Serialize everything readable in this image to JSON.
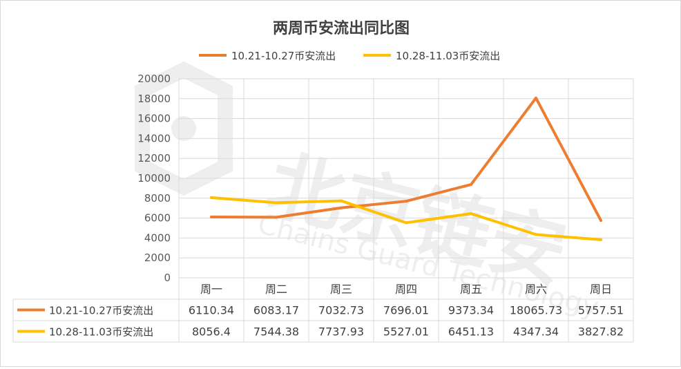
{
  "chart_data": {
    "type": "line",
    "title": "两周币安流出同比图",
    "categories": [
      "周一",
      "周二",
      "周三",
      "周四",
      "周五",
      "周六",
      "周日"
    ],
    "series": [
      {
        "name": "10.21-10.27币安流出",
        "color": "#ED7D31",
        "values": [
          6110.34,
          6083.17,
          7032.73,
          7696.01,
          9373.34,
          18065.73,
          5757.51
        ],
        "labels": [
          "6110.34",
          "6083.17",
          "7032.73",
          "7696.01",
          "9373.34",
          "18065.73",
          "5757.51"
        ]
      },
      {
        "name": "10.28-11.03币安流出",
        "color": "#FFC000",
        "values": [
          8056.4,
          7544.38,
          7737.93,
          5527.01,
          6451.13,
          4347.34,
          3827.82
        ],
        "labels": [
          "8056.4",
          "7544.38",
          "7737.93",
          "5527.01",
          "6451.13",
          "4347.34",
          "3827.82"
        ]
      }
    ],
    "yticks": [
      "0",
      "2000",
      "4000",
      "6000",
      "8000",
      "10000",
      "12000",
      "14000",
      "16000",
      "18000",
      "20000"
    ],
    "ylim": [
      0,
      20000
    ],
    "grid": true,
    "legend": "top",
    "data_table": true
  },
  "watermark": {
    "text": "北京链安",
    "subtext": "Chains Guard Technology"
  }
}
